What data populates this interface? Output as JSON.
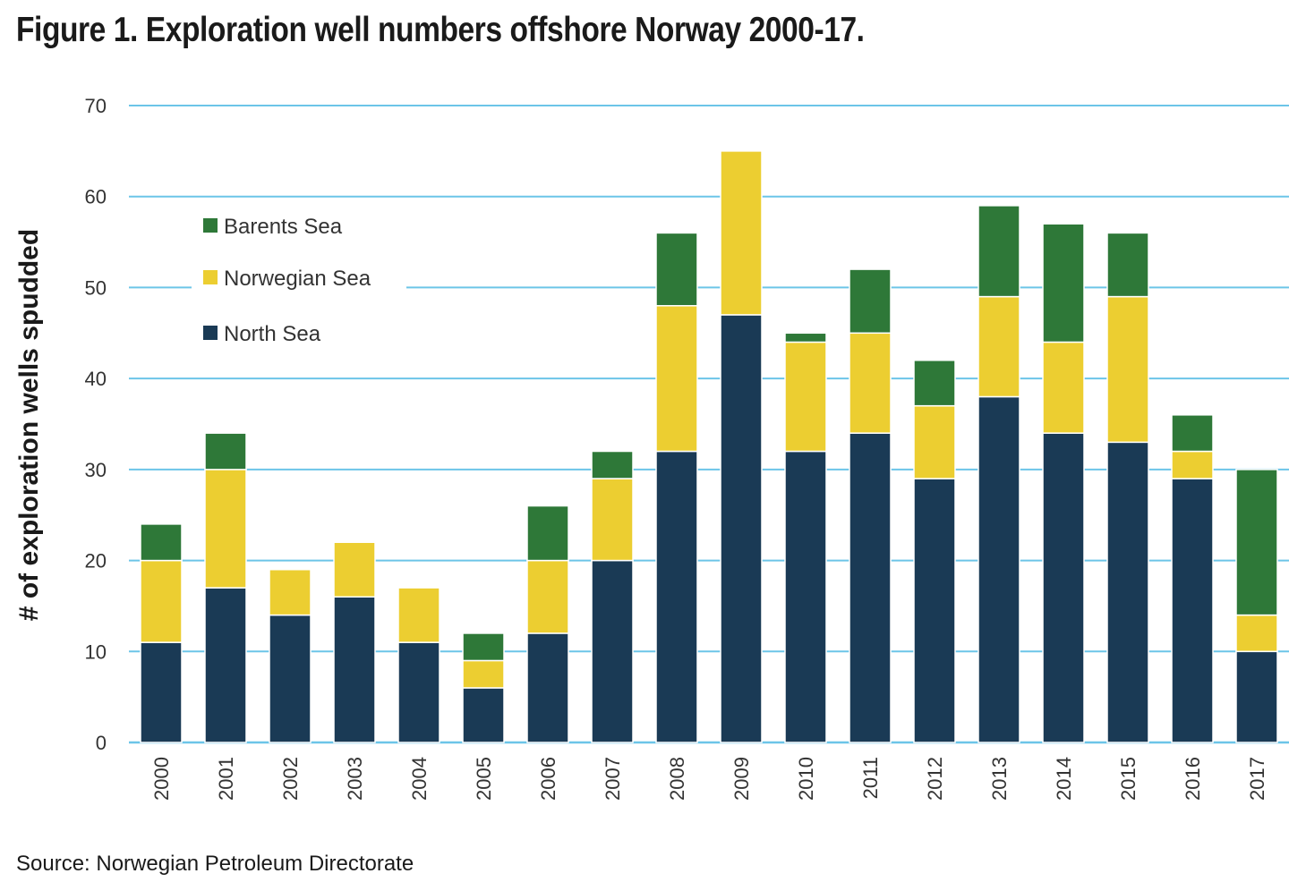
{
  "title": "Figure 1. Exploration well numbers offshore Norway 2000-17.",
  "source": "Source: Norwegian Petroleum Directorate",
  "chart_data": {
    "type": "bar",
    "stacked": true,
    "title": "Figure 1. Exploration well numbers offshore Norway 2000-17.",
    "xlabel": "",
    "ylabel": "# of exploration wells spudded",
    "ylim": [
      0,
      70
    ],
    "yticks": [
      0,
      10,
      20,
      30,
      40,
      50,
      60,
      70
    ],
    "grid": true,
    "legend_position": "top-left",
    "categories": [
      "2000",
      "2001",
      "2002",
      "2003",
      "2004",
      "2005",
      "2006",
      "2007",
      "2008",
      "2009",
      "2010",
      "2011",
      "2012",
      "2013",
      "2014",
      "2015",
      "2016",
      "2017"
    ],
    "series": [
      {
        "name": "North Sea",
        "color": "#1a3a55",
        "values": [
          11,
          17,
          14,
          16,
          11,
          6,
          12,
          20,
          32,
          47,
          32,
          34,
          29,
          38,
          34,
          33,
          29,
          10
        ]
      },
      {
        "name": "Norwegian Sea",
        "color": "#ecce31",
        "values": [
          9,
          13,
          5,
          6,
          6,
          3,
          8,
          9,
          16,
          18,
          12,
          11,
          8,
          11,
          10,
          16,
          3,
          4
        ]
      },
      {
        "name": "Barents Sea",
        "color": "#2e7838",
        "values": [
          4,
          4,
          0,
          0,
          0,
          3,
          6,
          3,
          8,
          0,
          1,
          7,
          5,
          10,
          13,
          7,
          4,
          16
        ]
      }
    ],
    "legend_order": [
      "Barents Sea",
      "Norwegian Sea",
      "North Sea"
    ],
    "colors": {
      "gridline": "#6cc5e8",
      "axis": "#6cc5e8"
    }
  }
}
